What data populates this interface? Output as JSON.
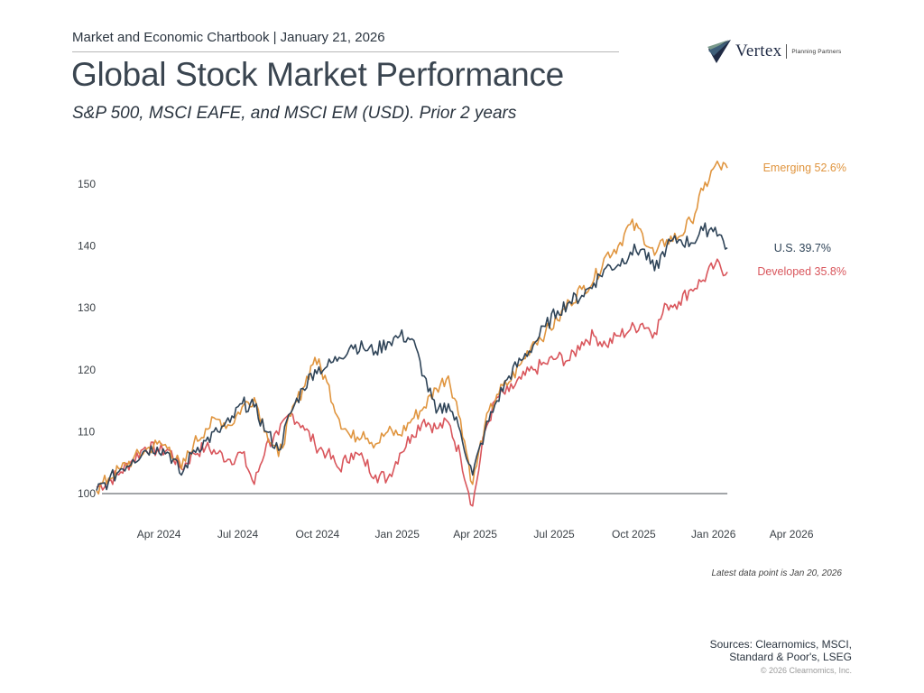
{
  "header": {
    "chartbook_line": "Market and Economic Chartbook | January 21, 2026",
    "title": "Global Stock Market Performance",
    "subtitle": "S&P 500, MSCI EAFE, and MSCI EM (USD). Prior 2 years"
  },
  "logo": {
    "name": "Vertex",
    "tagline": "Planning Partners",
    "icon": "vertex-chevron-logo-icon"
  },
  "footer": {
    "latest_note": "Latest data point is Jan 20, 2026",
    "sources_line1": "Sources: Clearnomics, MSCI,",
    "sources_line2": "Standard & Poor's, LSEG",
    "copyright": "© 2026 Clearnomics, Inc."
  },
  "chart_data": {
    "type": "line",
    "title": "Global Stock Market Performance",
    "subtitle": "S&P 500, MSCI EAFE, and MSCI EM (USD). Prior 2 years",
    "xlabel": "",
    "ylabel": "",
    "x_range": [
      "2024-01-20",
      "2026-04-30"
    ],
    "ylim": [
      100,
      153
    ],
    "baseline": 100,
    "grid": false,
    "legend": "end-of-line labels, right",
    "y_ticks": [
      100,
      110,
      120,
      130,
      140,
      150
    ],
    "x_ticks": [
      {
        "date": "2024-04-01",
        "label": "Apr 2024"
      },
      {
        "date": "2024-07-01",
        "label": "Jul 2024"
      },
      {
        "date": "2024-10-01",
        "label": "Oct 2024"
      },
      {
        "date": "2025-01-01",
        "label": "Jan 2025"
      },
      {
        "date": "2025-04-01",
        "label": "Apr 2025"
      },
      {
        "date": "2025-07-01",
        "label": "Jul 2025"
      },
      {
        "date": "2025-10-01",
        "label": "Oct 2025"
      },
      {
        "date": "2026-01-01",
        "label": "Jan 2026"
      },
      {
        "date": "2026-04-01",
        "label": "Apr 2026"
      }
    ],
    "x_start": "2024-01-20",
    "x_step_days": 14,
    "series": [
      {
        "name": "Emerging",
        "end_label": "Emerging 52.6%",
        "color": "#e0953f",
        "values": [
          100.5,
          102.5,
          104.0,
          105.5,
          107.0,
          108.0,
          107.5,
          104.0,
          108.0,
          110.5,
          112.0,
          111.0,
          114.0,
          115.5,
          110.0,
          106.0,
          112.5,
          117.0,
          122.0,
          118.0,
          112.0,
          109.0,
          110.0,
          108.0,
          110.0,
          109.5,
          112.0,
          114.0,
          117.0,
          119.0,
          112.0,
          101.5,
          111.0,
          116.0,
          118.0,
          121.0,
          124.5,
          126.0,
          128.0,
          131.0,
          133.0,
          134.5,
          138.5,
          140.0,
          143.5,
          142.0,
          138.5,
          141.0,
          141.5,
          144.0,
          149.0,
          153.0,
          152.6
        ]
      },
      {
        "name": "U.S.",
        "end_label": "U.S. 39.7%",
        "color": "#2f4458",
        "values": [
          100.5,
          102.0,
          104.0,
          105.5,
          107.0,
          107.5,
          106.5,
          103.0,
          107.0,
          108.5,
          110.0,
          111.5,
          114.5,
          114.0,
          110.0,
          107.0,
          113.0,
          117.0,
          120.0,
          120.5,
          122.0,
          124.0,
          123.5,
          123.0,
          124.5,
          125.5,
          125.0,
          119.0,
          113.0,
          114.5,
          110.0,
          103.0,
          110.0,
          115.0,
          119.0,
          121.5,
          124.0,
          127.0,
          129.5,
          131.0,
          132.0,
          134.0,
          136.5,
          137.0,
          139.0,
          139.5,
          136.0,
          140.0,
          141.0,
          140.5,
          142.5,
          143.0,
          139.7
        ]
      },
      {
        "name": "Developed",
        "end_label": "Developed 35.8%",
        "color": "#d9565c",
        "values": [
          101.0,
          102.0,
          103.5,
          105.5,
          107.5,
          107.0,
          107.0,
          104.0,
          106.5,
          107.5,
          106.5,
          105.5,
          106.5,
          101.5,
          108.0,
          109.5,
          113.0,
          111.0,
          108.0,
          106.5,
          104.0,
          106.5,
          105.5,
          103.0,
          102.5,
          106.5,
          109.5,
          112.0,
          110.5,
          111.5,
          106.0,
          98.0,
          110.0,
          115.5,
          116.5,
          118.5,
          120.0,
          121.0,
          122.0,
          121.5,
          124.5,
          125.5,
          124.0,
          125.5,
          126.5,
          127.5,
          126.0,
          130.5,
          131.0,
          133.0,
          134.5,
          137.0,
          135.8
        ]
      }
    ]
  }
}
